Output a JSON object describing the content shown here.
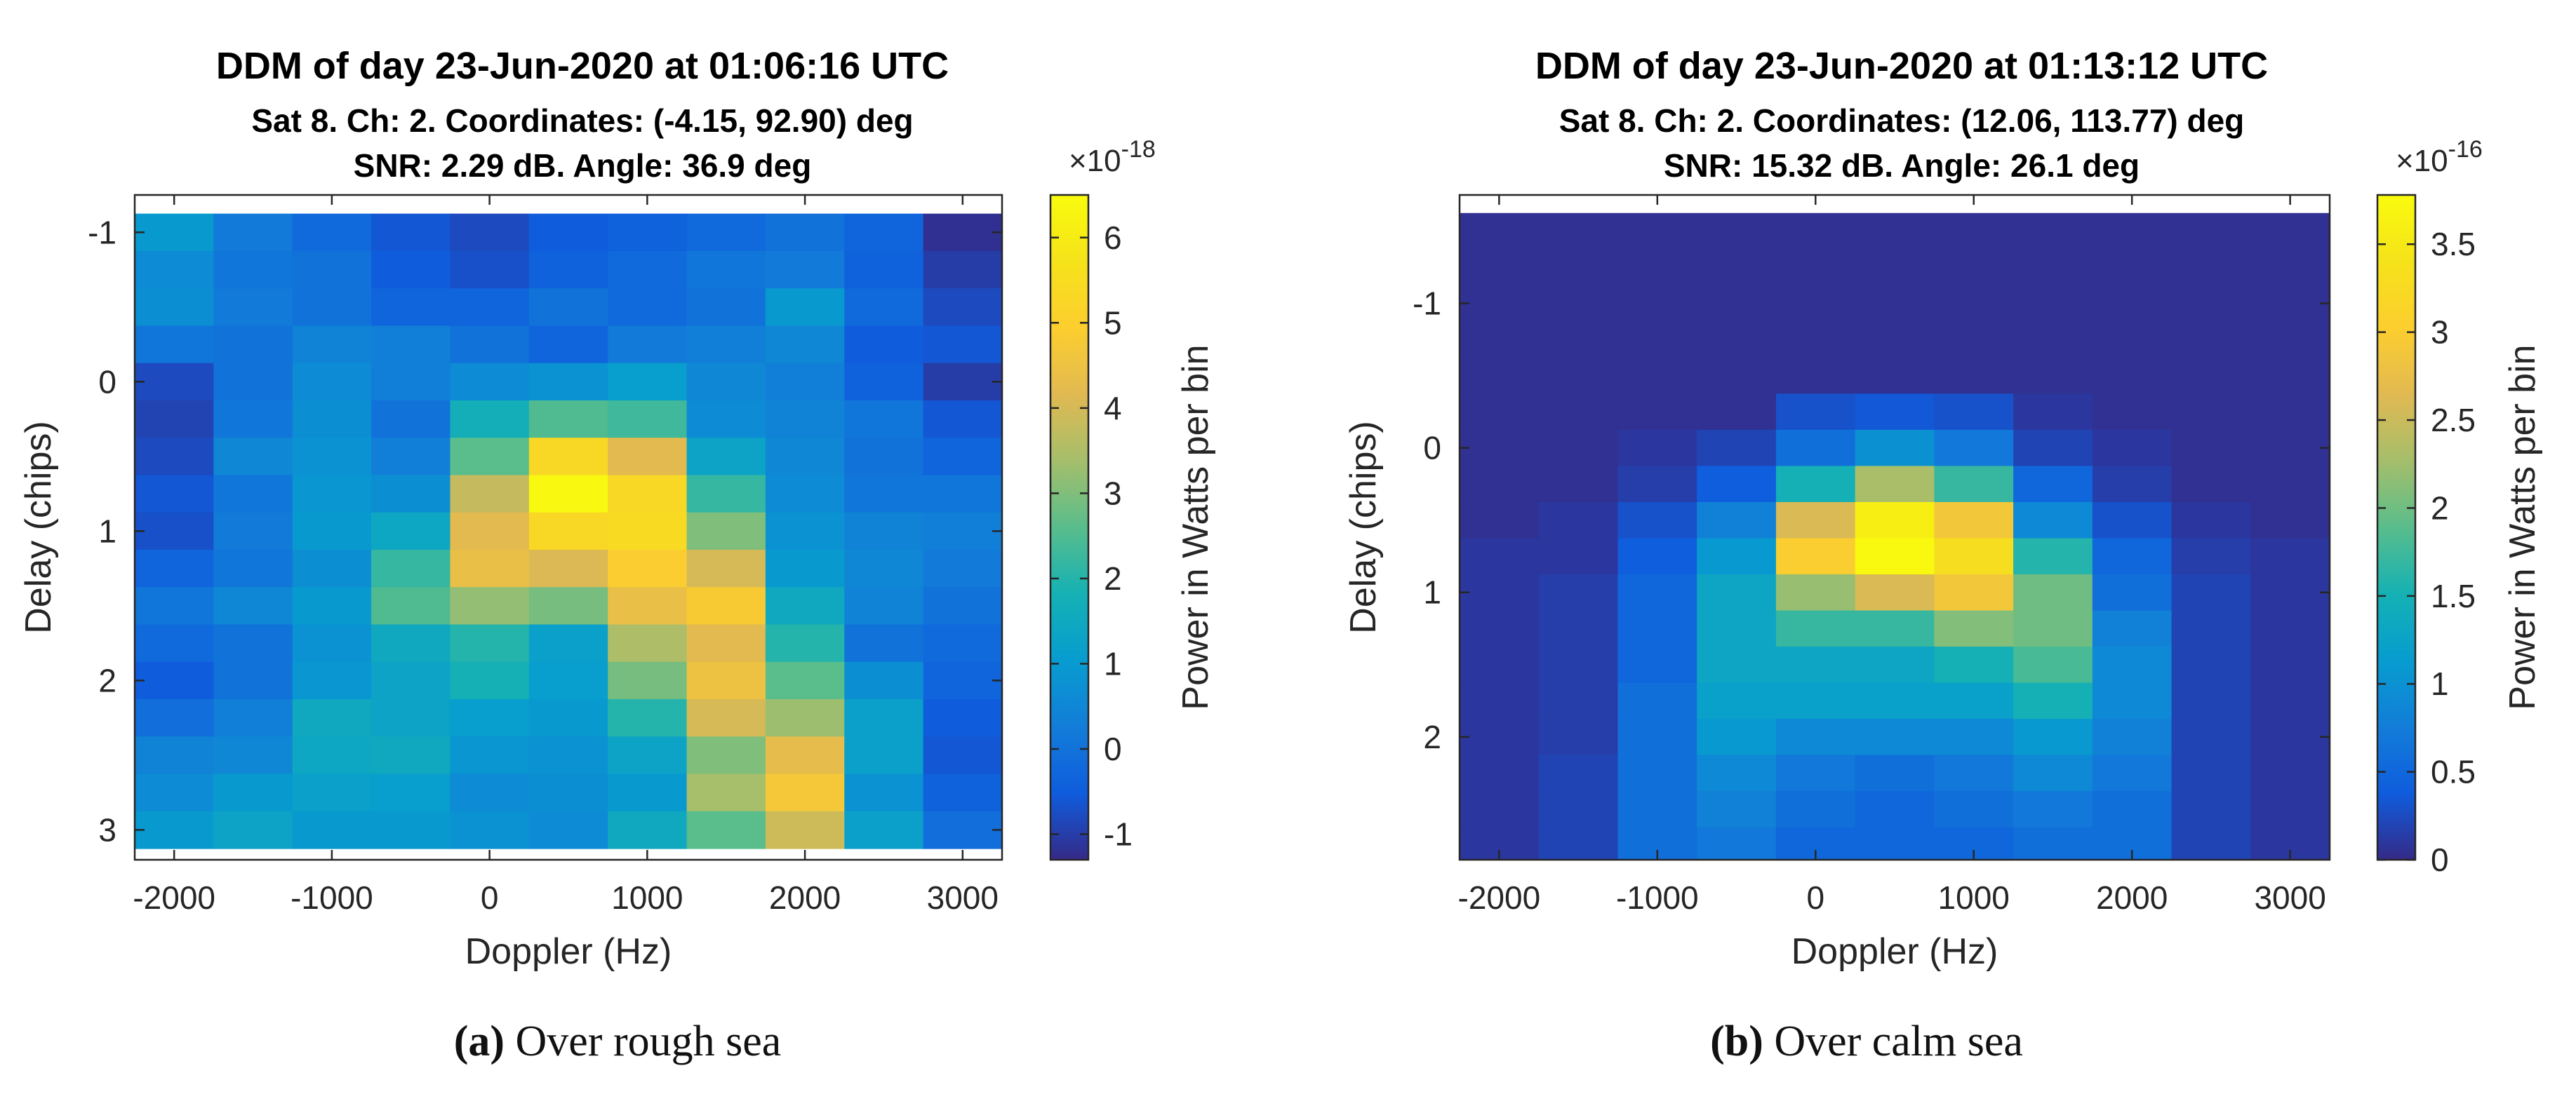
{
  "chart_data": [
    {
      "type": "heatmap",
      "id": "a",
      "title": "DDM of day 23-Jun-2020 at 01:06:16 UTC",
      "subtitle1": "Sat 8. Ch: 2. Coordinates: (-4.15, 92.90) deg",
      "subtitle2": "SNR: 2.29 dB. Angle: 36.9 deg",
      "xlabel": "Doppler (Hz)",
      "ylabel": "Delay (chips)",
      "xlim": [
        -2250,
        3250
      ],
      "ylim": [
        -1.25,
        3.2
      ],
      "xticks": [
        -2000,
        -1000,
        0,
        1000,
        2000,
        3000
      ],
      "xtick_labels": [
        "-2000",
        "-1000",
        "0",
        "1000",
        "2000",
        "3000"
      ],
      "yticks": [
        -1,
        0,
        1,
        2,
        3
      ],
      "ytick_labels": [
        "-1",
        "0",
        "1",
        "2",
        "3"
      ],
      "x_centers": [
        -2000,
        -1500,
        -1000,
        -500,
        0,
        500,
        1000,
        1500,
        2000,
        2500,
        3000
      ],
      "y_centers": [
        -1.0,
        -0.75,
        -0.5,
        -0.25,
        0.0,
        0.25,
        0.5,
        0.75,
        1.0,
        1.25,
        1.5,
        1.75,
        2.0,
        2.25,
        2.5,
        2.75,
        3.0
      ],
      "values": [
        [
          1.0,
          0.2,
          -0.2,
          -0.6,
          -0.8,
          -0.5,
          -0.4,
          -0.2,
          0.0,
          -0.3,
          -1.2
        ],
        [
          0.6,
          0.1,
          0.0,
          -0.5,
          -0.7,
          -0.4,
          -0.2,
          0.1,
          0.2,
          -0.4,
          -1.0
        ],
        [
          0.7,
          0.2,
          0.0,
          -0.3,
          -0.3,
          0.0,
          -0.2,
          0.0,
          1.0,
          -0.2,
          -0.8
        ],
        [
          0.1,
          0.0,
          0.4,
          0.3,
          0.0,
          -0.3,
          0.2,
          0.3,
          0.5,
          -0.5,
          -0.6
        ],
        [
          -0.8,
          0.0,
          0.6,
          0.3,
          0.6,
          0.8,
          1.1,
          0.5,
          0.3,
          -0.4,
          -1.0
        ],
        [
          -0.9,
          0.1,
          0.7,
          0.0,
          1.7,
          2.5,
          2.3,
          0.6,
          0.4,
          0.1,
          -0.6
        ],
        [
          -0.8,
          0.5,
          0.8,
          0.3,
          2.6,
          5.3,
          4.2,
          1.3,
          0.5,
          0.0,
          -0.3
        ],
        [
          -0.6,
          0.1,
          0.9,
          0.7,
          3.8,
          6.4,
          5.3,
          2.2,
          0.6,
          0.1,
          0.1
        ],
        [
          -0.7,
          0.2,
          1.0,
          1.4,
          4.2,
          5.3,
          5.4,
          3.0,
          0.8,
          0.4,
          0.3
        ],
        [
          -0.3,
          0.1,
          0.7,
          2.2,
          4.4,
          4.1,
          4.9,
          4.0,
          1.0,
          0.5,
          0.2
        ],
        [
          0.1,
          0.5,
          1.0,
          2.5,
          3.2,
          2.9,
          4.4,
          4.8,
          1.5,
          0.4,
          0.0
        ],
        [
          -0.2,
          0.0,
          0.8,
          1.5,
          2.0,
          1.2,
          3.5,
          4.2,
          2.0,
          0.0,
          -0.2
        ],
        [
          -0.5,
          0.0,
          0.9,
          1.3,
          1.8,
          1.1,
          2.9,
          4.5,
          2.6,
          0.7,
          -0.3
        ],
        [
          -0.1,
          0.3,
          1.5,
          1.3,
          1.1,
          1.0,
          2.0,
          4.0,
          3.3,
          1.2,
          -0.5
        ],
        [
          0.4,
          0.5,
          1.4,
          1.5,
          0.9,
          0.8,
          1.3,
          3.0,
          4.3,
          1.2,
          -0.6
        ],
        [
          0.6,
          1.0,
          1.2,
          1.1,
          0.6,
          0.7,
          1.0,
          3.4,
          4.7,
          0.8,
          -0.4
        ],
        [
          1.0,
          1.3,
          1.0,
          1.0,
          0.8,
          0.6,
          1.5,
          2.6,
          3.9,
          1.2,
          -0.1
        ]
      ],
      "colorbar": {
        "label": "Power in Watts per bin",
        "multiplier": "×10",
        "exponent": "-18",
        "min": -1.3,
        "max": 6.5,
        "ticks": [
          -1,
          0,
          1,
          2,
          3,
          4,
          5,
          6
        ],
        "tick_labels": [
          "-1",
          "0",
          "1",
          "2",
          "3",
          "4",
          "5",
          "6"
        ]
      },
      "caption_letter": "(a)",
      "caption_text": " Over rough sea"
    },
    {
      "type": "heatmap",
      "id": "b",
      "title": "DDM of day 23-Jun-2020 at 01:13:12 UTC",
      "subtitle1": "Sat 8. Ch: 2. Coordinates: (12.06, 113.77) deg",
      "subtitle2": "SNR: 15.32 dB. Angle: 26.1 deg",
      "xlabel": "Doppler (Hz)",
      "ylabel": "Delay (chips)",
      "xlim": [
        -2250,
        3250
      ],
      "ylim": [
        -1.75,
        2.85
      ],
      "xticks": [
        -2000,
        -1000,
        0,
        1000,
        2000,
        3000
      ],
      "xtick_labels": [
        "-2000",
        "-1000",
        "0",
        "1000",
        "2000",
        "3000"
      ],
      "yticks": [
        -1,
        0,
        1,
        2
      ],
      "ytick_labels": [
        "-1",
        "0",
        "1",
        "2"
      ],
      "x_centers": [
        -2000,
        -1500,
        -1000,
        -500,
        0,
        500,
        1000,
        1500,
        2000,
        2500,
        3000
      ],
      "y_centers": [
        -1.5,
        -1.25,
        -1.0,
        -0.75,
        -0.5,
        -0.25,
        0.0,
        0.25,
        0.5,
        0.75,
        1.0,
        1.25,
        1.5,
        1.75,
        2.0,
        2.25,
        2.5,
        2.75
      ],
      "values": [
        [
          0.05,
          0.05,
          0.05,
          0.05,
          0.05,
          0.05,
          0.05,
          0.05,
          0.05,
          0.05,
          0.05
        ],
        [
          0.05,
          0.05,
          0.05,
          0.05,
          0.05,
          0.05,
          0.05,
          0.05,
          0.05,
          0.05,
          0.05
        ],
        [
          0.05,
          0.05,
          0.05,
          0.05,
          0.05,
          0.05,
          0.05,
          0.05,
          0.05,
          0.05,
          0.05
        ],
        [
          0.05,
          0.05,
          0.05,
          0.05,
          0.05,
          0.05,
          0.05,
          0.05,
          0.05,
          0.05,
          0.05
        ],
        [
          0.05,
          0.05,
          0.05,
          0.05,
          0.05,
          0.05,
          0.05,
          0.05,
          0.05,
          0.05,
          0.05
        ],
        [
          0.05,
          0.05,
          0.05,
          0.05,
          0.3,
          0.35,
          0.3,
          0.1,
          0.05,
          0.05,
          0.05
        ],
        [
          0.05,
          0.05,
          0.1,
          0.2,
          0.6,
          1.0,
          0.7,
          0.2,
          0.1,
          0.05,
          0.05
        ],
        [
          0.05,
          0.05,
          0.15,
          0.4,
          1.5,
          2.3,
          1.7,
          0.5,
          0.15,
          0.05,
          0.05
        ],
        [
          0.05,
          0.1,
          0.3,
          0.8,
          2.6,
          3.6,
          2.9,
          0.9,
          0.3,
          0.1,
          0.05
        ],
        [
          0.1,
          0.1,
          0.4,
          1.1,
          3.0,
          3.75,
          3.3,
          1.6,
          0.5,
          0.15,
          0.1
        ],
        [
          0.1,
          0.15,
          0.5,
          1.3,
          2.2,
          2.6,
          2.9,
          2.0,
          0.6,
          0.2,
          0.1
        ],
        [
          0.1,
          0.15,
          0.5,
          1.3,
          1.7,
          1.7,
          2.1,
          2.0,
          0.8,
          0.2,
          0.1
        ],
        [
          0.1,
          0.15,
          0.5,
          1.3,
          1.3,
          1.3,
          1.5,
          1.8,
          0.9,
          0.2,
          0.1
        ],
        [
          0.1,
          0.15,
          0.6,
          1.2,
          1.2,
          1.2,
          1.2,
          1.5,
          0.9,
          0.2,
          0.1
        ],
        [
          0.1,
          0.15,
          0.6,
          1.1,
          0.9,
          0.9,
          0.9,
          1.1,
          0.8,
          0.2,
          0.1
        ],
        [
          0.1,
          0.2,
          0.6,
          0.9,
          0.7,
          0.6,
          0.7,
          0.9,
          0.7,
          0.2,
          0.1
        ],
        [
          0.1,
          0.2,
          0.6,
          0.8,
          0.6,
          0.5,
          0.6,
          0.7,
          0.6,
          0.2,
          0.1
        ],
        [
          0.1,
          0.2,
          0.6,
          0.7,
          0.5,
          0.5,
          0.5,
          0.6,
          0.6,
          0.2,
          0.1
        ]
      ],
      "colorbar": {
        "label": "Power in Watts per bin",
        "multiplier": "×10",
        "exponent": "-16",
        "min": 0,
        "max": 3.78,
        "ticks": [
          0,
          0.5,
          1,
          1.5,
          2,
          2.5,
          3,
          3.5
        ],
        "tick_labels": [
          "0",
          "0.5",
          "1",
          "1.5",
          "2",
          "2.5",
          "3",
          "3.5"
        ]
      },
      "caption_letter": "(b)",
      "caption_text": " Over calm sea"
    }
  ]
}
